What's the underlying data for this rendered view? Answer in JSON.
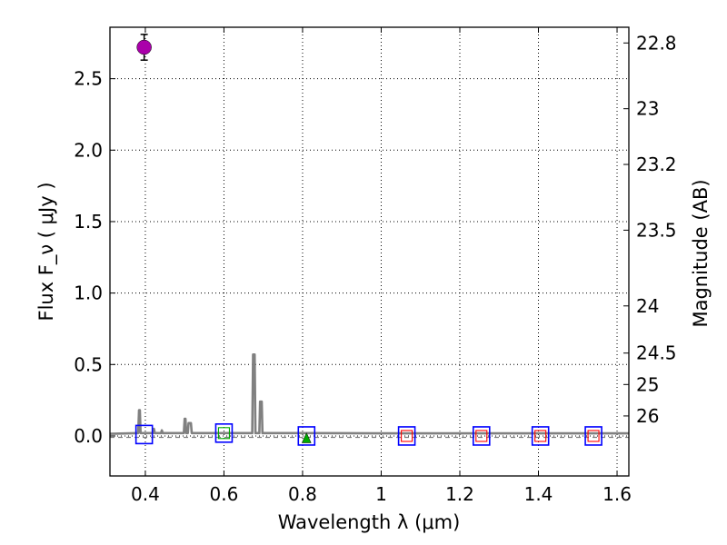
{
  "chart_data": {
    "type": "scatter",
    "xlabel": "Wavelength  λ (μm)",
    "ylabel": "Flux  F_ν  ( μJy )",
    "ylabel_right": "Magnitude (AB)",
    "xlim": [
      0.31,
      1.63
    ],
    "ylim": [
      -0.28,
      2.86
    ],
    "x_ticks": [
      0.4,
      0.6,
      0.8,
      1.0,
      1.2,
      1.4,
      1.6
    ],
    "x_tick_labels": [
      "0.4",
      "0.6",
      "0.8",
      "1",
      "1.2",
      "1.4",
      "1.6"
    ],
    "y_ticks": [
      0.0,
      0.5,
      1.0,
      1.5,
      2.0,
      2.5
    ],
    "y_tick_labels": [
      "0.0",
      "0.5",
      "1.0",
      "1.5",
      "2.0",
      "2.5"
    ],
    "right_ticks": [
      {
        "label": "22.8",
        "flux": 2.75
      },
      {
        "label": "23",
        "flux": 2.29
      },
      {
        "label": "23.2",
        "flux": 1.9
      },
      {
        "label": "23.5",
        "flux": 1.44
      },
      {
        "label": "24",
        "flux": 0.91
      },
      {
        "label": "24.5",
        "flux": 0.58
      },
      {
        "label": "25",
        "flux": 0.36
      },
      {
        "label": "26",
        "flux": 0.14
      }
    ],
    "grid": true,
    "series": [
      {
        "name": "model spectrum",
        "kind": "line",
        "color": "#808080",
        "x": [
          0.31,
          0.382,
          0.384,
          0.386,
          0.388,
          0.39,
          0.395,
          0.42,
          0.422,
          0.424,
          0.44,
          0.442,
          0.444,
          0.498,
          0.5,
          0.502,
          0.504,
          0.508,
          0.51,
          0.512,
          0.514,
          0.516,
          0.518,
          0.672,
          0.674,
          0.676,
          0.678,
          0.68,
          0.682,
          0.69,
          0.692,
          0.694,
          0.696,
          0.698,
          0.8,
          1.0,
          1.2,
          1.4,
          1.63
        ],
        "y": [
          0.015,
          0.02,
          0.18,
          0.18,
          0.02,
          0.02,
          0.02,
          0.02,
          0.05,
          0.02,
          0.02,
          0.04,
          0.02,
          0.02,
          0.12,
          0.12,
          0.02,
          0.02,
          0.09,
          0.09,
          0.09,
          0.09,
          0.02,
          0.02,
          0.57,
          0.57,
          0.57,
          0.02,
          0.02,
          0.02,
          0.24,
          0.24,
          0.24,
          0.02,
          0.02,
          0.018,
          0.018,
          0.018,
          0.018
        ]
      },
      {
        "name": "zero level (dashed)",
        "kind": "dashed-line",
        "color": "#808080",
        "x": [
          0.31,
          1.63
        ],
        "y": [
          -0.01,
          -0.01
        ]
      },
      {
        "name": "measured flux",
        "kind": "marker",
        "marker": "circle",
        "color": "#aa00aa",
        "x": [
          0.397
        ],
        "y": [
          2.72
        ],
        "yerr": [
          0.09
        ]
      },
      {
        "name": "model photometry",
        "kind": "marker",
        "marker": "square",
        "color": "#0000ff",
        "x": [
          0.397,
          0.6,
          0.81,
          1.065,
          1.255,
          1.405,
          1.54
        ],
        "y": [
          0.01,
          0.02,
          0.0,
          0.0,
          0.0,
          0.0,
          0.0
        ]
      },
      {
        "name": "upper limits",
        "kind": "marker",
        "marker": "small-square",
        "color": "#ff0000",
        "x": [
          1.065,
          1.255,
          1.405,
          1.54
        ],
        "y": [
          0.0,
          0.0,
          0.0,
          0.0
        ]
      },
      {
        "name": "green marker (0.6)",
        "kind": "marker",
        "marker": "small-square",
        "color": "#00aa00",
        "x": [
          0.6
        ],
        "y": [
          0.02
        ]
      },
      {
        "name": "green triangle (0.81)",
        "kind": "marker",
        "marker": "triangle",
        "color": "#00aa00",
        "x": [
          0.81
        ],
        "y": [
          -0.01
        ]
      }
    ]
  }
}
